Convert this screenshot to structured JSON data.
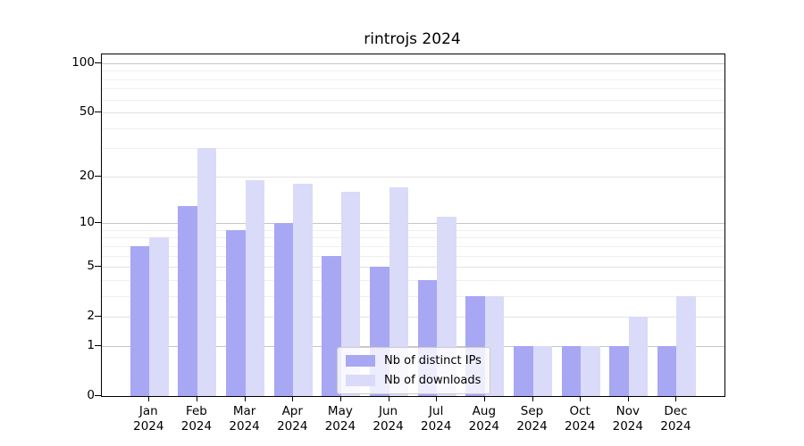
{
  "figure": {
    "title": "rintrojs 2024",
    "background": "#ffffff"
  },
  "legend": {
    "position": "lower-center",
    "entries": [
      "Nb of distinct IPs",
      "Nb of downloads"
    ]
  },
  "chart_data": {
    "type": "bar",
    "title": "rintrojs 2024",
    "categories": [
      "Jan",
      "Feb",
      "Mar",
      "Apr",
      "May",
      "Jun",
      "Jul",
      "Aug",
      "Sep",
      "Oct",
      "Nov",
      "Dec"
    ],
    "year": "2024",
    "series": [
      {
        "name": "Nb of distinct IPs",
        "color": "#a7a7f4",
        "values": [
          7,
          13,
          9,
          10,
          6,
          5,
          4,
          3,
          1,
          1,
          1,
          1
        ]
      },
      {
        "name": "Nb of downloads",
        "color": "#dadaf9",
        "values": [
          8,
          30,
          19,
          18,
          16,
          17,
          11,
          3,
          1,
          1,
          2,
          3
        ]
      }
    ],
    "xlabel": "",
    "ylabel": "",
    "yscale": "log1p",
    "ylim": [
      0,
      113
    ],
    "yticks": [
      100,
      50,
      20,
      10,
      5,
      2,
      1,
      0
    ],
    "grid": {
      "decade_lines": [
        1,
        10,
        100
      ],
      "labeled_lines": [
        2,
        5,
        20,
        50
      ],
      "minor_lines": [
        3,
        4,
        6,
        7,
        8,
        9,
        30,
        40,
        60,
        70,
        80,
        90
      ]
    },
    "grid_colors": {
      "decade": "#c6c6c6",
      "labeled": "#e2e2e2",
      "minor": "#efefef"
    },
    "legend_position": "lower-center"
  }
}
